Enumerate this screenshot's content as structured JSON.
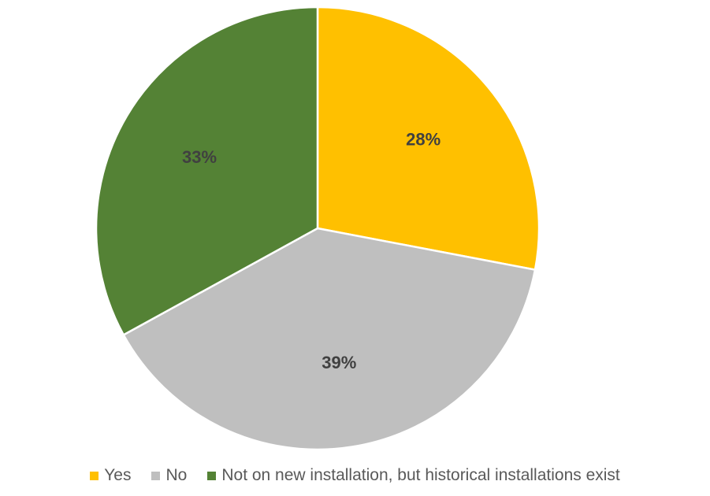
{
  "chart_data": {
    "type": "pie",
    "categories": [
      "Yes",
      "No",
      "Not on new installation, but historical installations exist"
    ],
    "values": [
      28,
      39,
      33
    ],
    "data_labels": [
      "28%",
      "39%",
      "33%"
    ],
    "colors": [
      "#FFC000",
      "#BFBFBF",
      "#548235"
    ],
    "title": "",
    "legend_position": "bottom"
  }
}
